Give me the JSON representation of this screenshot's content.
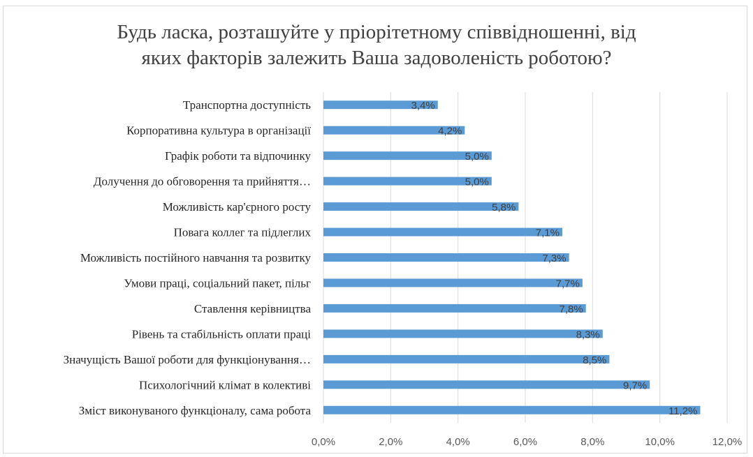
{
  "chart_data": {
    "type": "bar",
    "orientation": "horizontal",
    "title_lines": [
      "Будь ласка, розташуйте у пріорітетному співвідношенні, від",
      "яких факторів залежить Ваша задоволеність роботою?"
    ],
    "categories": [
      "Транспортна доступність",
      "Корпоративна культура в організації",
      "Графік роботи та відпочинку",
      "Долучення до обговорення та прийняття…",
      "Можливість кар'єрного росту",
      "Повага коллег та підлеглих",
      "Можливість постійного навчання та розвитку",
      "Умови праці, соціальний пакет, пільг",
      "Ставлення керівництва",
      "Рівень та стабільність оплати праці",
      "Значущість Вашої роботи для функціонування…",
      "Психологічний клімат в колективі",
      "Зміст виконуваного функціоналу, сама робота"
    ],
    "values": [
      3.4,
      4.2,
      5.0,
      5.0,
      5.8,
      7.1,
      7.3,
      7.7,
      7.8,
      8.3,
      8.5,
      9.7,
      11.2
    ],
    "data_labels": [
      "3,4%",
      "4,2%",
      "5,0%",
      "5,0%",
      "5,8%",
      "7,1%",
      "7,3%",
      "7,7%",
      "7,8%",
      "8,3%",
      "8,5%",
      "9,7%",
      "11,2%"
    ],
    "x_ticks": [
      0,
      2,
      4,
      6,
      8,
      10,
      12
    ],
    "x_tick_labels": [
      "0,0%",
      "2,0%",
      "4,0%",
      "6,0%",
      "8,0%",
      "10,0%",
      "12,0%"
    ],
    "xlim": [
      0,
      12
    ],
    "grid": true,
    "legend": "none",
    "bar_color": "#5b9bd5",
    "grid_color": "#d9d9d9"
  }
}
